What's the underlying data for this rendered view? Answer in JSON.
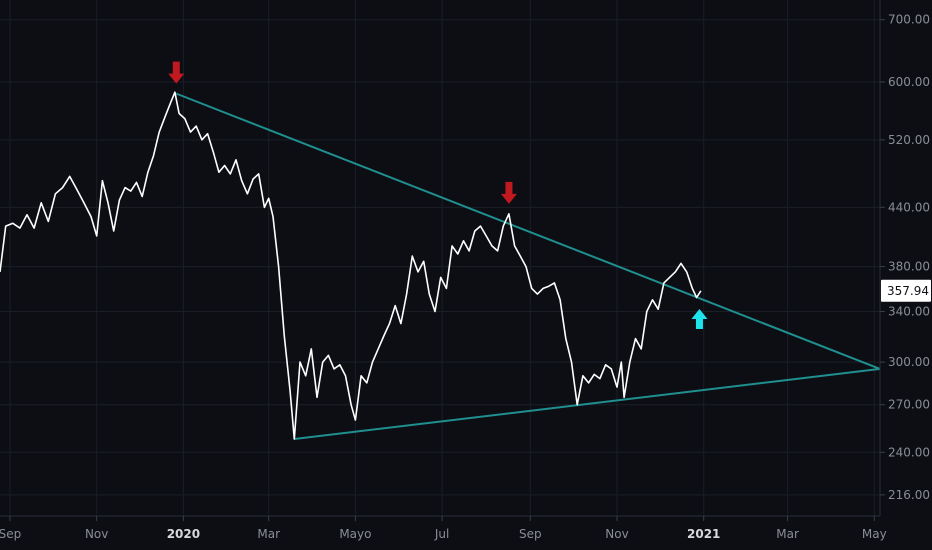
{
  "chart_data": {
    "type": "line",
    "title": "",
    "xlabel": "",
    "ylabel": "",
    "y_scale": "log",
    "ylim": [
      205,
      735
    ],
    "xlim": [
      "2019-08-25",
      "2021-05-05"
    ],
    "grid": true,
    "colors": {
      "background": "#0c0e14",
      "price_line": "#ffffff",
      "trendline": "#1f8f8f",
      "down_arrow": "#c0191f",
      "up_arrow": "#1de3ec",
      "axis_text": "#8a8d96",
      "grid": "#1a1e27"
    },
    "y_ticks": [
      "216.00",
      "240.00",
      "270.00",
      "300.00",
      "340.00",
      "380.00",
      "440.00",
      "520.00",
      "600.00",
      "700.00"
    ],
    "x_ticks": [
      {
        "label": "Sep",
        "date": "2019-09-01",
        "bold": false
      },
      {
        "label": "Nov",
        "date": "2019-11-01",
        "bold": false
      },
      {
        "label": "2020",
        "date": "2020-01-01",
        "bold": true
      },
      {
        "label": "Mar",
        "date": "2020-03-01",
        "bold": false
      },
      {
        "label": "Mayo",
        "date": "2020-05-01",
        "bold": false
      },
      {
        "label": "Jul",
        "date": "2020-07-01",
        "bold": false
      },
      {
        "label": "Sep",
        "date": "2020-09-01",
        "bold": false
      },
      {
        "label": "Nov",
        "date": "2020-11-01",
        "bold": false
      },
      {
        "label": "2021",
        "date": "2021-01-01",
        "bold": true
      },
      {
        "label": "Mar",
        "date": "2021-03-01",
        "bold": false
      },
      {
        "label": "May",
        "date": "2021-05-01",
        "bold": false
      }
    ],
    "current_price_label": "357.94",
    "series": [
      {
        "values": [
          [
            "2019-08-25",
            375
          ],
          [
            "2019-08-29",
            420
          ],
          [
            "2019-09-03",
            423
          ],
          [
            "2019-09-08",
            418
          ],
          [
            "2019-09-13",
            432
          ],
          [
            "2019-09-18",
            418
          ],
          [
            "2019-09-23",
            445
          ],
          [
            "2019-09-28",
            425
          ],
          [
            "2019-10-03",
            455
          ],
          [
            "2019-10-08",
            462
          ],
          [
            "2019-10-13",
            475
          ],
          [
            "2019-10-18",
            460
          ],
          [
            "2019-10-23",
            445
          ],
          [
            "2019-10-28",
            430
          ],
          [
            "2019-11-01",
            410
          ],
          [
            "2019-11-05",
            470
          ],
          [
            "2019-11-09",
            445
          ],
          [
            "2019-11-13",
            415
          ],
          [
            "2019-11-17",
            448
          ],
          [
            "2019-11-21",
            462
          ],
          [
            "2019-11-25",
            458
          ],
          [
            "2019-11-29",
            468
          ],
          [
            "2019-12-03",
            452
          ],
          [
            "2019-12-07",
            480
          ],
          [
            "2019-12-11",
            500
          ],
          [
            "2019-12-15",
            530
          ],
          [
            "2019-12-19",
            550
          ],
          [
            "2019-12-23",
            570
          ],
          [
            "2019-12-26",
            585
          ],
          [
            "2019-12-29",
            555
          ],
          [
            "2020-01-02",
            548
          ],
          [
            "2020-01-06",
            530
          ],
          [
            "2020-01-10",
            538
          ],
          [
            "2020-01-14",
            520
          ],
          [
            "2020-01-18",
            528
          ],
          [
            "2020-01-22",
            505
          ],
          [
            "2020-01-26",
            480
          ],
          [
            "2020-01-30",
            488
          ],
          [
            "2020-02-03",
            478
          ],
          [
            "2020-02-07",
            495
          ],
          [
            "2020-02-11",
            470
          ],
          [
            "2020-02-15",
            455
          ],
          [
            "2020-02-19",
            472
          ],
          [
            "2020-02-23",
            478
          ],
          [
            "2020-02-27",
            440
          ],
          [
            "2020-03-01",
            450
          ],
          [
            "2020-03-04",
            430
          ],
          [
            "2020-03-08",
            380
          ],
          [
            "2020-03-12",
            320
          ],
          [
            "2020-03-16",
            280
          ],
          [
            "2020-03-19",
            248
          ],
          [
            "2020-03-23",
            300
          ],
          [
            "2020-03-27",
            290
          ],
          [
            "2020-03-31",
            310
          ],
          [
            "2020-04-04",
            275
          ],
          [
            "2020-04-08",
            300
          ],
          [
            "2020-04-12",
            305
          ],
          [
            "2020-04-16",
            295
          ],
          [
            "2020-04-20",
            298
          ],
          [
            "2020-04-24",
            290
          ],
          [
            "2020-04-28",
            270
          ],
          [
            "2020-05-01",
            260
          ],
          [
            "2020-05-05",
            290
          ],
          [
            "2020-05-09",
            285
          ],
          [
            "2020-05-13",
            300
          ],
          [
            "2020-05-17",
            310
          ],
          [
            "2020-05-21",
            320
          ],
          [
            "2020-05-25",
            330
          ],
          [
            "2020-05-29",
            345
          ],
          [
            "2020-06-02",
            330
          ],
          [
            "2020-06-06",
            355
          ],
          [
            "2020-06-10",
            390
          ],
          [
            "2020-06-14",
            375
          ],
          [
            "2020-06-18",
            385
          ],
          [
            "2020-06-22",
            355
          ],
          [
            "2020-06-26",
            340
          ],
          [
            "2020-06-30",
            370
          ],
          [
            "2020-07-04",
            360
          ],
          [
            "2020-07-08",
            400
          ],
          [
            "2020-07-12",
            392
          ],
          [
            "2020-07-16",
            405
          ],
          [
            "2020-07-20",
            395
          ],
          [
            "2020-07-24",
            415
          ],
          [
            "2020-07-28",
            420
          ],
          [
            "2020-08-01",
            410
          ],
          [
            "2020-08-05",
            400
          ],
          [
            "2020-08-09",
            395
          ],
          [
            "2020-08-13",
            420
          ],
          [
            "2020-08-17",
            433
          ],
          [
            "2020-08-21",
            400
          ],
          [
            "2020-08-25",
            390
          ],
          [
            "2020-08-29",
            380
          ],
          [
            "2020-09-02",
            360
          ],
          [
            "2020-09-06",
            355
          ],
          [
            "2020-09-10",
            360
          ],
          [
            "2020-09-14",
            362
          ],
          [
            "2020-09-18",
            365
          ],
          [
            "2020-09-22",
            350
          ],
          [
            "2020-09-26",
            318
          ],
          [
            "2020-09-30",
            300
          ],
          [
            "2020-10-04",
            270
          ],
          [
            "2020-10-08",
            290
          ],
          [
            "2020-10-12",
            285
          ],
          [
            "2020-10-16",
            291
          ],
          [
            "2020-10-20",
            288
          ],
          [
            "2020-10-24",
            298
          ],
          [
            "2020-10-28",
            295
          ],
          [
            "2020-11-01",
            282
          ],
          [
            "2020-11-04",
            300
          ],
          [
            "2020-11-06",
            275
          ],
          [
            "2020-11-10",
            300
          ],
          [
            "2020-11-14",
            318
          ],
          [
            "2020-11-18",
            310
          ],
          [
            "2020-11-22",
            340
          ],
          [
            "2020-11-26",
            350
          ],
          [
            "2020-11-30",
            342
          ],
          [
            "2020-12-04",
            365
          ],
          [
            "2020-12-08",
            370
          ],
          [
            "2020-12-12",
            375
          ],
          [
            "2020-12-16",
            383
          ],
          [
            "2020-12-20",
            375
          ],
          [
            "2020-12-24",
            360
          ],
          [
            "2020-12-27",
            352
          ],
          [
            "2020-12-30",
            357.94
          ]
        ]
      }
    ],
    "annotations": {
      "trendlines": [
        {
          "name": "upper-trendline",
          "start": [
            "2019-12-27",
            583
          ],
          "end": [
            "2021-05-05",
            295
          ]
        },
        {
          "name": "lower-trendline",
          "start": [
            "2020-03-19",
            248
          ],
          "end": [
            "2021-05-05",
            295
          ]
        }
      ],
      "arrows": [
        {
          "name": "peak-down-arrow-1",
          "type": "down",
          "date": "2019-12-27",
          "value": 583
        },
        {
          "name": "peak-down-arrow-2",
          "type": "down",
          "date": "2020-08-17",
          "value": 433
        },
        {
          "name": "breakout-up-arrow",
          "type": "up",
          "date": "2020-12-29",
          "value": 356
        }
      ]
    }
  }
}
